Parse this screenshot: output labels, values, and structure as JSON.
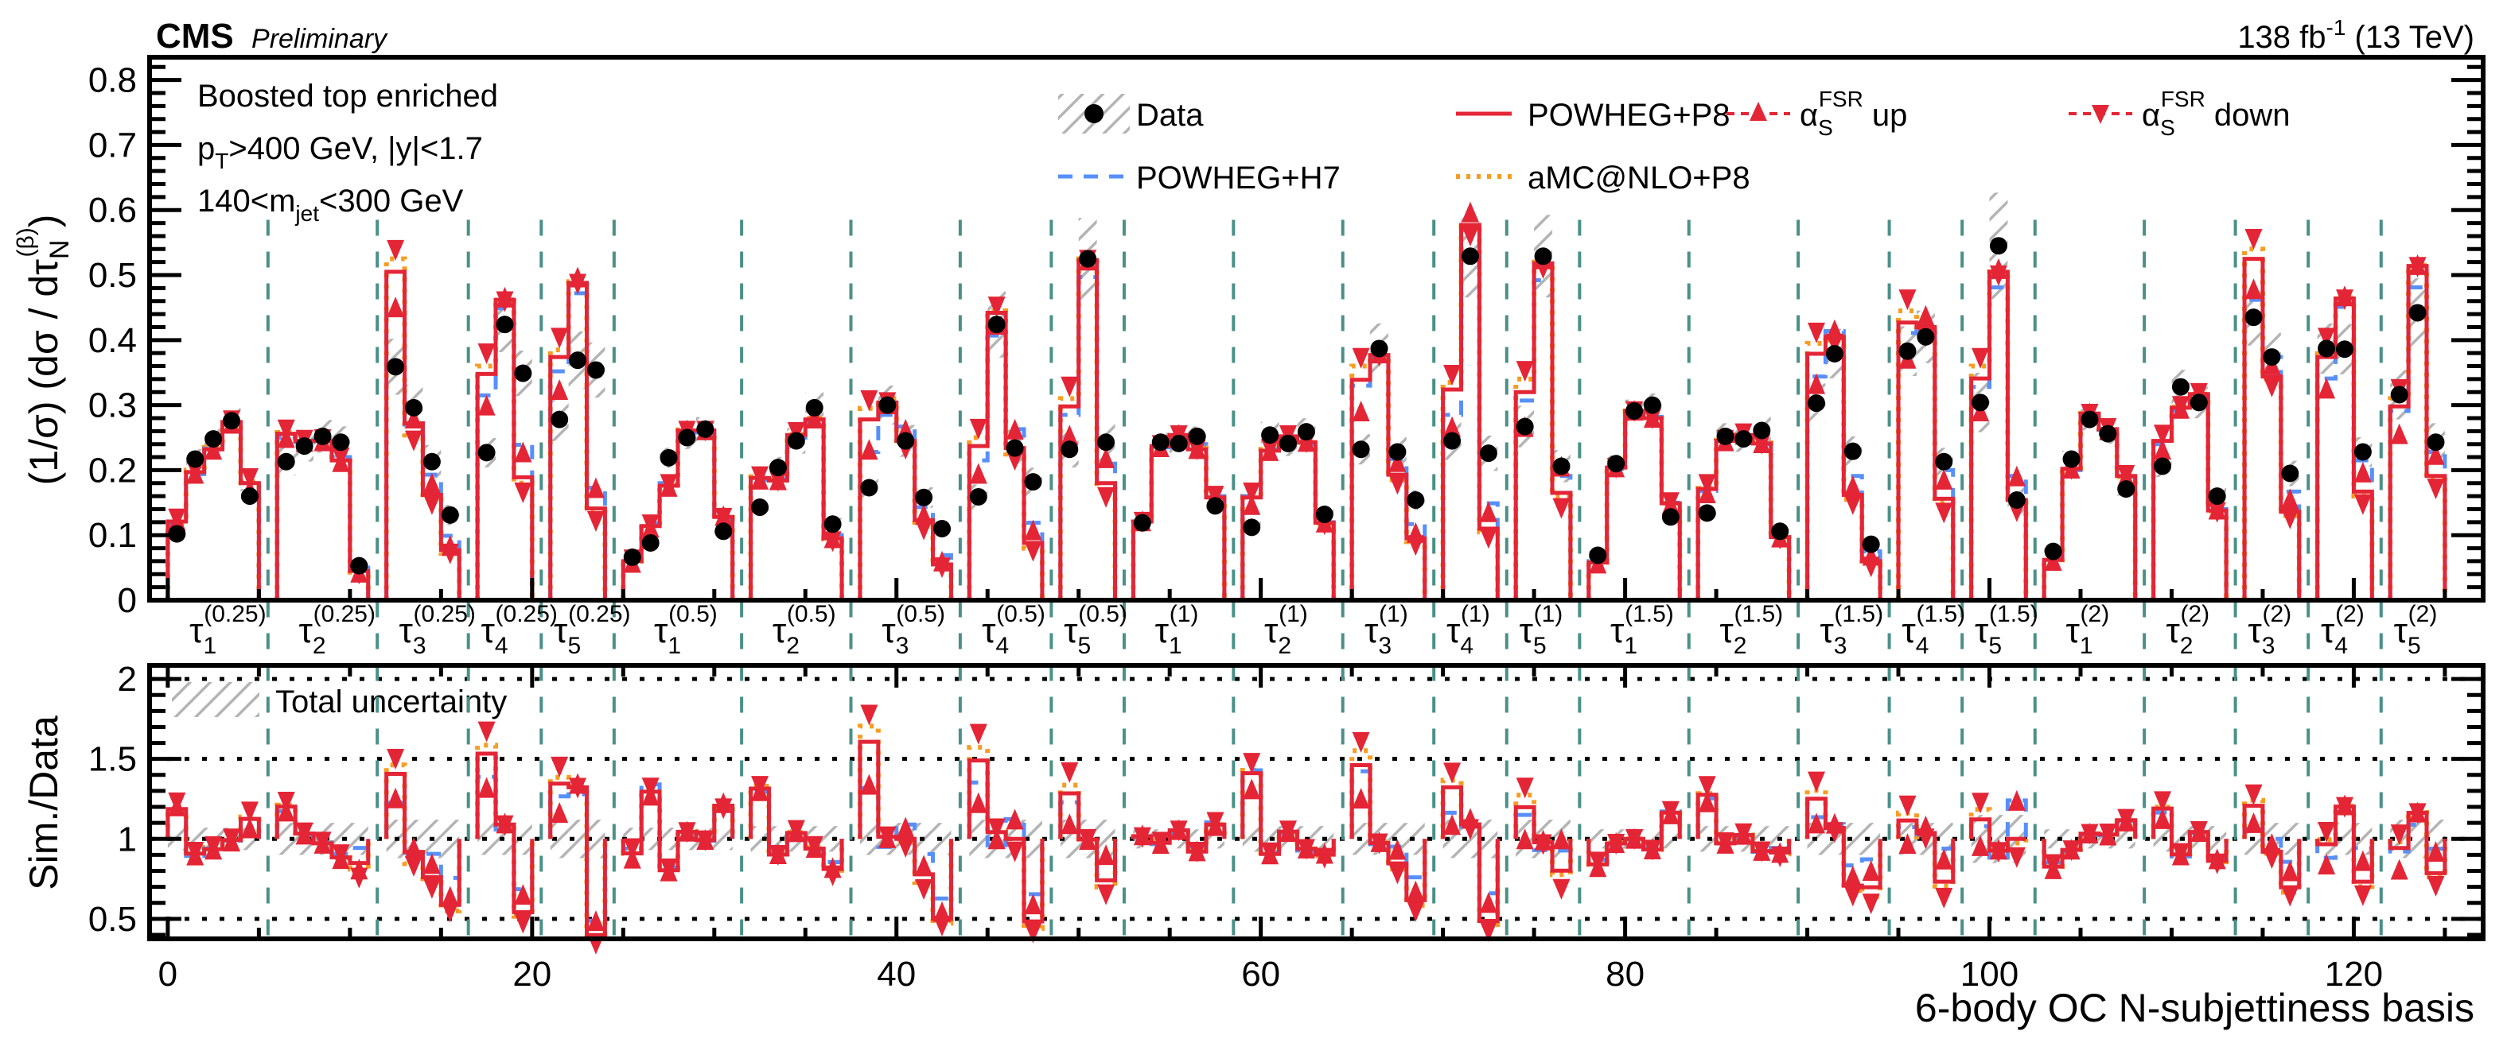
{
  "header": {
    "experiment": "CMS",
    "status": "Preliminary",
    "lumi": "138 fb",
    "lumi_exp": "-1",
    "energy": " (13 TeV)"
  },
  "selection": {
    "line1": "Boosted top enriched",
    "line2_a": "p",
    "line2_sub": "T",
    "line2_b": ">400 GeV, |y|<1.7",
    "line3_a": "140<m",
    "line3_sub": "jet",
    "line3_b": "<300 GeV"
  },
  "legend": {
    "data": "Data",
    "p8": "POWHEG+P8",
    "h7": "POWHEG+H7",
    "amc": "aMC@NLO+P8",
    "alpha": "α",
    "alpha_sub": "S",
    "alpha_sup": "FSR",
    "up": " up",
    "down": " down",
    "uncertainty": "Total uncertainty"
  },
  "colors": {
    "data": "#000000",
    "p8": "#e42536",
    "h7": "#5790fc",
    "amc": "#f89c20",
    "fsr": "#e42536",
    "separator": "#4a9088",
    "hatch": "#b4b4b4"
  },
  "chart_data": {
    "type": "line",
    "title": "",
    "xlabel": "6-body OC  N-subjettiness basis",
    "ylabel": "(1/σ) (dσ / dτ_N^(β))",
    "ratio_ylabel": "Sim./Data",
    "xlim": [
      -1,
      127.1
    ],
    "ylim": [
      0,
      0.835
    ],
    "ratio_ylim": [
      0.375,
      2.085
    ],
    "xticks": [
      0,
      20,
      40,
      60,
      80,
      100,
      120
    ],
    "yticks": [
      "0",
      "0.1",
      "0.2",
      "0.3",
      "0.4",
      "0.5",
      "0.6",
      "0.7",
      "0.8"
    ],
    "ratio_yticks": [
      "0.5",
      "1",
      "1.5",
      "2"
    ],
    "ratio_gridlines": [
      0.5,
      1,
      1.5,
      2
    ],
    "legend_placement": "top-right",
    "groups": [
      {
        "n": "1",
        "beta": "(0.25)",
        "unc": 0.07,
        "data": [
          0.102,
          0.217,
          0.248,
          0.276,
          0.16
        ],
        "p8": [
          0.121,
          0.197,
          0.232,
          0.274,
          0.18
        ],
        "h7": [
          0.118,
          0.194,
          0.233,
          0.273,
          0.18
        ],
        "amc": [
          0.118,
          0.2,
          0.235,
          0.275,
          0.182
        ],
        "up": [
          0.123,
          0.195,
          0.232,
          0.272,
          0.171
        ],
        "down": [
          0.125,
          0.199,
          0.236,
          0.276,
          0.187
        ]
      },
      {
        "n": "2",
        "beta": "(0.25)",
        "unc": 0.1,
        "data": [
          0.213,
          0.237,
          0.252,
          0.243,
          0.053
        ],
        "p8": [
          0.256,
          0.245,
          0.245,
          0.215,
          0.045
        ],
        "h7": [
          0.25,
          0.243,
          0.246,
          0.22,
          0.05
        ],
        "amc": [
          0.258,
          0.246,
          0.246,
          0.214,
          0.043
        ],
        "up": [
          0.25,
          0.244,
          0.245,
          0.213,
          0.043
        ],
        "down": [
          0.262,
          0.246,
          0.247,
          0.219,
          0.04
        ]
      },
      {
        "n": "3",
        "beta": "(0.25)",
        "unc": 0.12,
        "data": [
          0.359,
          0.296,
          0.213,
          0.131
        ],
        "p8": [
          0.505,
          0.272,
          0.162,
          0.077
        ],
        "h7": [
          0.44,
          0.27,
          0.193,
          0.099
        ],
        "amc": [
          0.525,
          0.25,
          0.155,
          0.072
        ],
        "up": [
          0.451,
          0.28,
          0.18,
          0.084
        ],
        "down": [
          0.538,
          0.245,
          0.147,
          0.071
        ]
      },
      {
        "n": "4",
        "beta": "(0.25)",
        "unc": 0.1,
        "data": [
          0.227,
          0.424,
          0.349
        ],
        "p8": [
          0.348,
          0.462,
          0.189
        ],
        "h7": [
          0.315,
          0.449,
          0.239
        ],
        "amc": [
          0.36,
          0.46,
          0.18
        ],
        "up": [
          0.3,
          0.466,
          0.228
        ],
        "down": [
          0.379,
          0.459,
          0.165
        ]
      },
      {
        "n": "5",
        "beta": "(0.25)",
        "unc": 0.12,
        "data": [
          0.278,
          0.369,
          0.354
        ],
        "p8": [
          0.374,
          0.488,
          0.141
        ],
        "h7": [
          0.352,
          0.472,
          0.173
        ],
        "amc": [
          0.385,
          0.49,
          0.135
        ],
        "up": [
          0.324,
          0.497,
          0.173
        ],
        "down": [
          0.403,
          0.486,
          0.121
        ]
      },
      {
        "n": "1",
        "beta": "(0.5)",
        "unc": 0.07,
        "data": [
          0.066,
          0.088,
          0.219,
          0.25,
          0.263,
          0.106
        ],
        "p8": [
          0.06,
          0.114,
          0.176,
          0.261,
          0.261,
          0.128
        ],
        "h7": [
          0.062,
          0.118,
          0.18,
          0.258,
          0.26,
          0.125
        ],
        "amc": [
          0.06,
          0.112,
          0.178,
          0.262,
          0.262,
          0.127
        ],
        "up": [
          0.058,
          0.112,
          0.175,
          0.262,
          0.262,
          0.13
        ],
        "down": [
          0.062,
          0.116,
          0.178,
          0.26,
          0.26,
          0.126
        ]
      },
      {
        "n": "2",
        "beta": "(0.5)",
        "unc": 0.08,
        "data": [
          0.143,
          0.204,
          0.245,
          0.296,
          0.117
        ],
        "p8": [
          0.188,
          0.184,
          0.254,
          0.278,
          0.095
        ],
        "h7": [
          0.185,
          0.186,
          0.25,
          0.275,
          0.1
        ],
        "amc": [
          0.19,
          0.185,
          0.255,
          0.28,
          0.094
        ],
        "up": [
          0.186,
          0.185,
          0.256,
          0.28,
          0.096
        ],
        "down": [
          0.19,
          0.183,
          0.258,
          0.282,
          0.09
        ]
      },
      {
        "n": "3",
        "beta": "(0.5)",
        "unc": 0.1,
        "data": [
          0.173,
          0.3,
          0.245,
          0.158,
          0.11
        ],
        "p8": [
          0.278,
          0.304,
          0.245,
          0.123,
          0.055
        ],
        "h7": [
          0.228,
          0.285,
          0.267,
          0.143,
          0.069
        ],
        "amc": [
          0.295,
          0.31,
          0.24,
          0.115,
          0.052
        ],
        "up": [
          0.232,
          0.302,
          0.263,
          0.132,
          0.06
        ],
        "down": [
          0.307,
          0.304,
          0.232,
          0.108,
          0.05
        ]
      },
      {
        "n": "4",
        "beta": "(0.5)",
        "unc": 0.12,
        "data": [
          0.159,
          0.424,
          0.234,
          0.182
        ],
        "p8": [
          0.237,
          0.442,
          0.234,
          0.088
        ],
        "h7": [
          0.215,
          0.407,
          0.263,
          0.119
        ],
        "amc": [
          0.25,
          0.445,
          0.22,
          0.08
        ],
        "up": [
          0.195,
          0.424,
          0.263,
          0.108
        ],
        "down": [
          0.263,
          0.451,
          0.215,
          0.075
        ]
      },
      {
        "n": "5",
        "beta": "(0.5)",
        "unc": 0.12,
        "data": [
          0.232,
          0.525,
          0.243
        ],
        "p8": [
          0.298,
          0.523,
          0.18
        ],
        "h7": [
          0.285,
          0.497,
          0.21
        ],
        "amc": [
          0.31,
          0.525,
          0.17
        ],
        "up": [
          0.254,
          0.523,
          0.219
        ],
        "down": [
          0.328,
          0.523,
          0.158
        ]
      },
      {
        "n": "1",
        "beta": "(1)",
        "unc": 0.06,
        "data": [
          0.119,
          0.243,
          0.241,
          0.252,
          0.145
        ],
        "p8": [
          0.121,
          0.237,
          0.254,
          0.232,
          0.158
        ],
        "h7": [
          0.12,
          0.235,
          0.25,
          0.24,
          0.16
        ],
        "amc": [
          0.12,
          0.24,
          0.252,
          0.234,
          0.158
        ],
        "up": [
          0.122,
          0.236,
          0.255,
          0.233,
          0.157
        ],
        "down": [
          0.12,
          0.238,
          0.253,
          0.231,
          0.16
        ]
      },
      {
        "n": "2",
        "beta": "(1)",
        "unc": 0.08,
        "data": [
          0.112,
          0.254,
          0.241,
          0.259,
          0.132
        ],
        "p8": [
          0.158,
          0.23,
          0.252,
          0.243,
          0.119
        ],
        "h7": [
          0.16,
          0.232,
          0.248,
          0.24,
          0.12
        ],
        "amc": [
          0.16,
          0.232,
          0.25,
          0.243,
          0.118
        ],
        "up": [
          0.147,
          0.23,
          0.252,
          0.244,
          0.12
        ],
        "down": [
          0.165,
          0.232,
          0.253,
          0.242,
          0.116
        ]
      },
      {
        "n": "3",
        "beta": "(1)",
        "unc": 0.1,
        "data": [
          0.232,
          0.387,
          0.228,
          0.154
        ],
        "p8": [
          0.339,
          0.377,
          0.193,
          0.095
        ],
        "h7": [
          0.33,
          0.374,
          0.217,
          0.117
        ],
        "amc": [
          0.36,
          0.38,
          0.185,
          0.09
        ],
        "up": [
          0.291,
          0.38,
          0.213,
          0.104
        ],
        "down": [
          0.372,
          0.375,
          0.178,
          0.084
        ]
      },
      {
        "n": "4",
        "beta": "(1)",
        "unc": 0.12,
        "data": [
          0.245,
          0.529,
          0.226
        ],
        "p8": [
          0.324,
          0.577,
          0.11
        ],
        "h7": [
          0.285,
          0.569,
          0.149
        ],
        "amc": [
          0.335,
          0.575,
          0.105
        ],
        "up": [
          0.267,
          0.597,
          0.136
        ],
        "down": [
          0.346,
          0.56,
          0.095
        ]
      },
      {
        "n": "5",
        "beta": "(1)",
        "unc": 0.12,
        "data": [
          0.267,
          0.529,
          0.206
        ],
        "p8": [
          0.32,
          0.518,
          0.165
        ],
        "h7": [
          0.307,
          0.492,
          0.191
        ],
        "amc": [
          0.34,
          0.52,
          0.16
        ],
        "up": [
          0.267,
          0.525,
          0.206
        ],
        "down": [
          0.352,
          0.51,
          0.141
        ]
      },
      {
        "n": "1",
        "beta": "(1.5)",
        "unc": 0.06,
        "data": [
          0.069,
          0.21,
          0.291,
          0.3,
          0.128
        ],
        "p8": [
          0.058,
          0.204,
          0.291,
          0.28,
          0.149
        ],
        "h7": [
          0.06,
          0.202,
          0.29,
          0.282,
          0.15
        ],
        "amc": [
          0.058,
          0.205,
          0.291,
          0.28,
          0.149
        ],
        "up": [
          0.057,
          0.205,
          0.292,
          0.281,
          0.148
        ],
        "down": [
          0.059,
          0.203,
          0.29,
          0.279,
          0.15
        ]
      },
      {
        "n": "2",
        "beta": "(1.5)",
        "unc": 0.08,
        "data": [
          0.134,
          0.252,
          0.248,
          0.261,
          0.106
        ],
        "p8": [
          0.171,
          0.245,
          0.254,
          0.241,
          0.097
        ],
        "h7": [
          0.168,
          0.245,
          0.25,
          0.24,
          0.1
        ],
        "amc": [
          0.172,
          0.246,
          0.254,
          0.242,
          0.096
        ],
        "up": [
          0.165,
          0.245,
          0.255,
          0.242,
          0.097
        ],
        "down": [
          0.178,
          0.246,
          0.256,
          0.24,
          0.094
        ]
      },
      {
        "n": "3",
        "beta": "(1.5)",
        "unc": 0.1,
        "data": [
          0.303,
          0.379,
          0.229,
          0.086
        ],
        "p8": [
          0.379,
          0.405,
          0.162,
          0.06
        ],
        "h7": [
          0.344,
          0.414,
          0.191,
          0.075
        ],
        "amc": [
          0.395,
          0.4,
          0.155,
          0.055
        ],
        "up": [
          0.333,
          0.416,
          0.176,
          0.069
        ],
        "down": [
          0.411,
          0.394,
          0.147,
          0.051
        ]
      },
      {
        "n": "4",
        "beta": "(1.5)",
        "unc": 0.1,
        "data": [
          0.383,
          0.405,
          0.213
        ],
        "p8": [
          0.427,
          0.42,
          0.156
        ],
        "h7": [
          0.411,
          0.416,
          0.2
        ],
        "amc": [
          0.445,
          0.41,
          0.15
        ],
        "up": [
          0.372,
          0.438,
          0.186
        ],
        "down": [
          0.462,
          0.405,
          0.134
        ]
      },
      {
        "n": "5",
        "beta": "(1.5)",
        "unc": 0.15,
        "data": [
          0.304,
          0.545,
          0.154
        ],
        "p8": [
          0.341,
          0.505,
          0.154
        ],
        "h7": [
          0.328,
          0.481,
          0.191
        ],
        "amc": [
          0.36,
          0.505,
          0.15
        ],
        "up": [
          0.291,
          0.51,
          0.191
        ],
        "down": [
          0.372,
          0.499,
          0.136
        ]
      },
      {
        "n": "1",
        "beta": "(2)",
        "unc": 0.06,
        "data": [
          0.075,
          0.217,
          0.278,
          0.256,
          0.171
        ],
        "p8": [
          0.062,
          0.202,
          0.287,
          0.263,
          0.191
        ],
        "h7": [
          0.064,
          0.2,
          0.285,
          0.262,
          0.19
        ],
        "amc": [
          0.062,
          0.203,
          0.287,
          0.263,
          0.19
        ],
        "up": [
          0.061,
          0.203,
          0.288,
          0.262,
          0.19
        ],
        "down": [
          0.063,
          0.201,
          0.286,
          0.264,
          0.192
        ]
      },
      {
        "n": "2",
        "beta": "(2)",
        "unc": 0.08,
        "data": [
          0.206,
          0.328,
          0.304,
          0.16
        ],
        "p8": [
          0.245,
          0.296,
          0.317,
          0.138
        ],
        "h7": [
          0.24,
          0.292,
          0.315,
          0.14
        ],
        "amc": [
          0.247,
          0.297,
          0.317,
          0.137
        ],
        "up": [
          0.232,
          0.295,
          0.318,
          0.14
        ],
        "down": [
          0.254,
          0.298,
          0.318,
          0.135
        ]
      },
      {
        "n": "3",
        "beta": "(2)",
        "unc": 0.1,
        "data": [
          0.435,
          0.374,
          0.195
        ],
        "p8": [
          0.525,
          0.344,
          0.136
        ],
        "h7": [
          0.462,
          0.374,
          0.167
        ],
        "amc": [
          0.54,
          0.34,
          0.13
        ],
        "up": [
          0.479,
          0.363,
          0.156
        ],
        "down": [
          0.555,
          0.328,
          0.125
        ]
      },
      {
        "n": "4",
        "beta": "(2)",
        "unc": 0.1,
        "data": [
          0.387,
          0.386,
          0.228
        ],
        "p8": [
          0.374,
          0.464,
          0.167
        ],
        "h7": [
          0.341,
          0.451,
          0.215
        ],
        "amc": [
          0.385,
          0.465,
          0.16
        ],
        "up": [
          0.326,
          0.468,
          0.197
        ],
        "down": [
          0.403,
          0.462,
          0.147
        ]
      },
      {
        "n": "5",
        "beta": "(2)",
        "unc": 0.12,
        "data": [
          0.316,
          0.442,
          0.243
        ],
        "p8": [
          0.298,
          0.514,
          0.191
        ],
        "h7": [
          0.291,
          0.481,
          0.228
        ],
        "amc": [
          0.31,
          0.515,
          0.185
        ],
        "up": [
          0.256,
          0.516,
          0.224
        ],
        "down": [
          0.324,
          0.512,
          0.171
        ]
      }
    ]
  }
}
